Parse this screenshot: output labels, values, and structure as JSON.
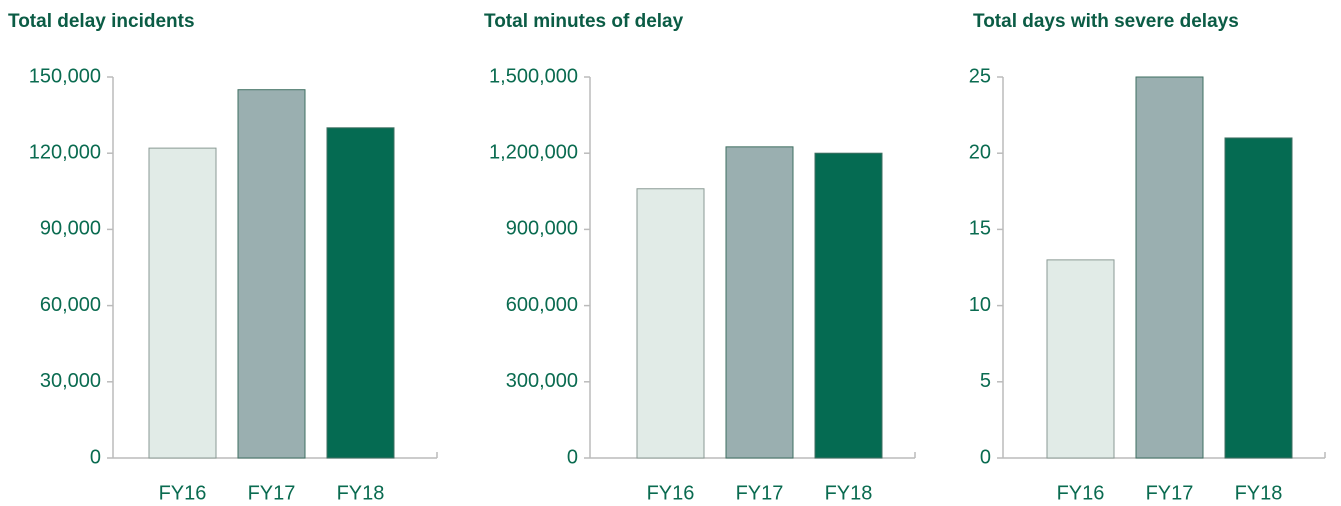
{
  "chart_data": [
    {
      "type": "bar",
      "title": "Total delay incidents",
      "categories": [
        "FY16",
        "FY17",
        "FY18"
      ],
      "values": [
        122000,
        145000,
        130000
      ],
      "colors": [
        "#e1ebe7",
        "#9aafb0",
        "#056b52"
      ],
      "ylim": [
        0,
        150000
      ],
      "yticks": [
        0,
        {
          "value": 30000,
          "label": "30,000"
        },
        {
          "value": 60000,
          "label": "60,000"
        },
        {
          "value": 90000,
          "label": "90,000"
        },
        {
          "value": 120000,
          "label": "120,000"
        },
        {
          "value": 150000,
          "label": "150,000"
        }
      ]
    },
    {
      "type": "bar",
      "title": "Total minutes of delay",
      "categories": [
        "FY16",
        "FY17",
        "FY18"
      ],
      "values": [
        1060000,
        1225000,
        1200000
      ],
      "colors": [
        "#e1ebe7",
        "#9aafb0",
        "#056b52"
      ],
      "ylim": [
        0,
        1500000
      ],
      "yticks": [
        0,
        {
          "value": 300000,
          "label": "300,000"
        },
        {
          "value": 600000,
          "label": "600,000"
        },
        {
          "value": 900000,
          "label": "900,000"
        },
        {
          "value": 1200000,
          "label": "1,200,000"
        },
        {
          "value": 1500000,
          "label": "1,500,000"
        }
      ]
    },
    {
      "type": "bar",
      "title": "Total days with severe delays",
      "categories": [
        "FY16",
        "FY17",
        "FY18"
      ],
      "values": [
        13,
        25,
        21
      ],
      "colors": [
        "#e1ebe7",
        "#9aafb0",
        "#056b52"
      ],
      "ylim": [
        0,
        25
      ],
      "yticks": [
        0,
        5,
        10,
        15,
        20,
        25
      ]
    }
  ]
}
